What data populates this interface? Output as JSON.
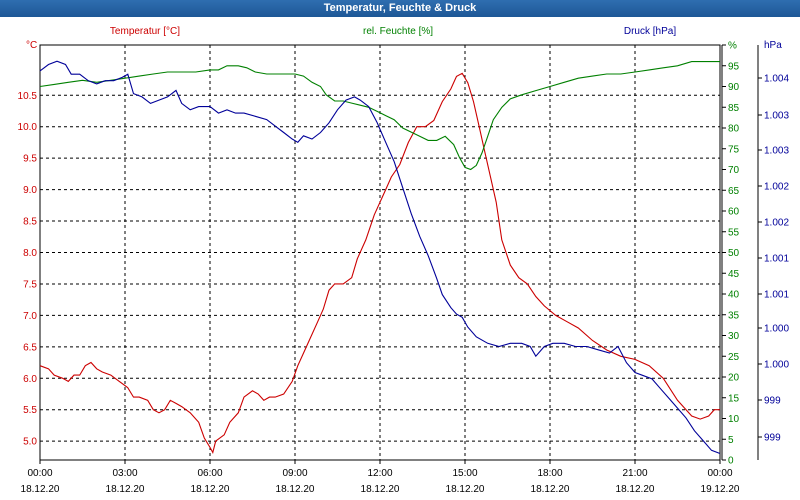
{
  "chart_data": {
    "type": "line",
    "title": "Temperatur, Feuchte & Druck",
    "grid": true,
    "legend_placement": "top",
    "x_ticks": [
      {
        "time": "00:00",
        "date": "18.12.20"
      },
      {
        "time": "03:00",
        "date": "18.12.20"
      },
      {
        "time": "06:00",
        "date": "18.12.20"
      },
      {
        "time": "09:00",
        "date": "18.12.20"
      },
      {
        "time": "12:00",
        "date": "18.12.20"
      },
      {
        "time": "15:00",
        "date": "18.12.20"
      },
      {
        "time": "18:00",
        "date": "18.12.20"
      },
      {
        "time": "21:00",
        "date": "18.12.20"
      },
      {
        "time": "00:00",
        "date": "19.12.20"
      }
    ],
    "x_range_hours": [
      0,
      24
    ],
    "axes": {
      "temperature": {
        "unit_label": "°C",
        "ylim": [
          4.7,
          11.3
        ],
        "ticks": [
          "10.5",
          "10.0",
          "9.5",
          "9.0",
          "8.5",
          "8.0",
          "7.5",
          "7.0",
          "6.5",
          "6.0",
          "5.5",
          "5.0"
        ],
        "color": "#cc0000"
      },
      "humidity": {
        "unit_label": "%",
        "ylim": [
          0,
          100
        ],
        "ticks": [
          "0",
          "5",
          "10",
          "15",
          "20",
          "25",
          "30",
          "35",
          "40",
          "45",
          "50",
          "55",
          "60",
          "65",
          "70",
          "75",
          "80",
          "85",
          "90",
          "95",
          "%"
        ],
        "color": "#008000"
      },
      "pressure": {
        "unit_label": "hPa",
        "ylim": [
          998.4,
          1004.8
        ],
        "ticks": [
          "1.004",
          "1.003",
          "1.003",
          "1.002",
          "1.002",
          "1.001",
          "1.001",
          "1.000",
          "1.000",
          "999",
          "999"
        ],
        "color": "#000099"
      }
    },
    "series": [
      {
        "name": "Temperatur [°C]",
        "axis": "temperature",
        "color": "#cc0000",
        "points": [
          [
            0,
            6.2
          ],
          [
            0.3,
            6.15
          ],
          [
            0.5,
            6.05
          ],
          [
            0.8,
            6.0
          ],
          [
            1.0,
            5.95
          ],
          [
            1.2,
            6.05
          ],
          [
            1.4,
            6.05
          ],
          [
            1.6,
            6.2
          ],
          [
            1.8,
            6.25
          ],
          [
            2.0,
            6.15
          ],
          [
            2.2,
            6.1
          ],
          [
            2.5,
            6.05
          ],
          [
            2.8,
            5.95
          ],
          [
            3.1,
            5.85
          ],
          [
            3.3,
            5.7
          ],
          [
            3.5,
            5.7
          ],
          [
            3.8,
            5.65
          ],
          [
            4.0,
            5.5
          ],
          [
            4.2,
            5.45
          ],
          [
            4.4,
            5.5
          ],
          [
            4.6,
            5.65
          ],
          [
            4.8,
            5.6
          ],
          [
            5.0,
            5.55
          ],
          [
            5.3,
            5.45
          ],
          [
            5.6,
            5.3
          ],
          [
            5.8,
            5.05
          ],
          [
            6.0,
            4.9
          ],
          [
            6.1,
            4.82
          ],
          [
            6.2,
            5.0
          ],
          [
            6.5,
            5.1
          ],
          [
            6.7,
            5.3
          ],
          [
            7.0,
            5.45
          ],
          [
            7.2,
            5.7
          ],
          [
            7.5,
            5.8
          ],
          [
            7.7,
            5.75
          ],
          [
            7.9,
            5.65
          ],
          [
            8.1,
            5.7
          ],
          [
            8.3,
            5.7
          ],
          [
            8.6,
            5.75
          ],
          [
            8.9,
            5.95
          ],
          [
            9.1,
            6.2
          ],
          [
            9.3,
            6.4
          ],
          [
            9.5,
            6.6
          ],
          [
            9.8,
            6.9
          ],
          [
            10.0,
            7.1
          ],
          [
            10.2,
            7.4
          ],
          [
            10.4,
            7.5
          ],
          [
            10.7,
            7.5
          ],
          [
            11.0,
            7.6
          ],
          [
            11.2,
            7.9
          ],
          [
            11.5,
            8.2
          ],
          [
            11.8,
            8.6
          ],
          [
            12.0,
            8.8
          ],
          [
            12.2,
            9.0
          ],
          [
            12.4,
            9.2
          ],
          [
            12.7,
            9.4
          ],
          [
            13.0,
            9.75
          ],
          [
            13.3,
            10.0
          ],
          [
            13.6,
            10.0
          ],
          [
            13.9,
            10.1
          ],
          [
            14.2,
            10.4
          ],
          [
            14.5,
            10.6
          ],
          [
            14.7,
            10.8
          ],
          [
            14.9,
            10.85
          ],
          [
            15.1,
            10.7
          ],
          [
            15.3,
            10.4
          ],
          [
            15.5,
            10.0
          ],
          [
            15.7,
            9.6
          ],
          [
            15.9,
            9.2
          ],
          [
            16.1,
            8.8
          ],
          [
            16.3,
            8.2
          ],
          [
            16.6,
            7.8
          ],
          [
            16.9,
            7.6
          ],
          [
            17.2,
            7.5
          ],
          [
            17.5,
            7.3
          ],
          [
            17.8,
            7.15
          ],
          [
            18.2,
            7.0
          ],
          [
            18.6,
            6.9
          ],
          [
            19.0,
            6.8
          ],
          [
            19.5,
            6.6
          ],
          [
            20.0,
            6.45
          ],
          [
            20.5,
            6.35
          ],
          [
            21.0,
            6.3
          ],
          [
            21.5,
            6.2
          ],
          [
            22.0,
            6.0
          ],
          [
            22.5,
            5.65
          ],
          [
            23.0,
            5.4
          ],
          [
            23.3,
            5.35
          ],
          [
            23.6,
            5.4
          ],
          [
            23.8,
            5.5
          ],
          [
            24.0,
            5.5
          ]
        ]
      },
      {
        "name": "rel. Feuchte [%]",
        "axis": "humidity",
        "color": "#008000",
        "points": [
          [
            0,
            90
          ],
          [
            0.5,
            90.5
          ],
          [
            1.0,
            91
          ],
          [
            1.5,
            91.5
          ],
          [
            2.0,
            91
          ],
          [
            2.5,
            91.5
          ],
          [
            3.0,
            92
          ],
          [
            3.5,
            92.5
          ],
          [
            4.0,
            93
          ],
          [
            4.5,
            93.5
          ],
          [
            5.0,
            93.5
          ],
          [
            5.5,
            93.5
          ],
          [
            6.0,
            94
          ],
          [
            6.3,
            94
          ],
          [
            6.6,
            95
          ],
          [
            7.0,
            95
          ],
          [
            7.3,
            94.5
          ],
          [
            7.6,
            93.5
          ],
          [
            8.0,
            93
          ],
          [
            8.5,
            93
          ],
          [
            9.0,
            93
          ],
          [
            9.3,
            92.5
          ],
          [
            9.6,
            91
          ],
          [
            9.9,
            90
          ],
          [
            10.1,
            88
          ],
          [
            10.4,
            86.5
          ],
          [
            10.7,
            86.5
          ],
          [
            11.0,
            86
          ],
          [
            11.3,
            85.5
          ],
          [
            11.6,
            85
          ],
          [
            11.9,
            84
          ],
          [
            12.2,
            83
          ],
          [
            12.5,
            82
          ],
          [
            12.8,
            80
          ],
          [
            13.1,
            79
          ],
          [
            13.4,
            78
          ],
          [
            13.7,
            77
          ],
          [
            14.0,
            77
          ],
          [
            14.3,
            78
          ],
          [
            14.6,
            76
          ],
          [
            14.8,
            73
          ],
          [
            15.0,
            70.5
          ],
          [
            15.2,
            70
          ],
          [
            15.4,
            71
          ],
          [
            15.6,
            74
          ],
          [
            15.8,
            78
          ],
          [
            16.0,
            82
          ],
          [
            16.3,
            85
          ],
          [
            16.6,
            87
          ],
          [
            17.0,
            88
          ],
          [
            17.5,
            89
          ],
          [
            18.0,
            90
          ],
          [
            18.5,
            91
          ],
          [
            19.0,
            92
          ],
          [
            19.5,
            92.5
          ],
          [
            20.0,
            93
          ],
          [
            20.5,
            93
          ],
          [
            21.0,
            93.5
          ],
          [
            21.5,
            94
          ],
          [
            22.0,
            94.5
          ],
          [
            22.5,
            95
          ],
          [
            23.0,
            96
          ],
          [
            23.5,
            96
          ],
          [
            24.0,
            96
          ]
        ]
      },
      {
        "name": "Druck [hPa]",
        "axis": "pressure",
        "color": "#000099",
        "points": [
          [
            0,
            1004.4
          ],
          [
            0.3,
            1004.5
          ],
          [
            0.6,
            1004.55
          ],
          [
            0.9,
            1004.5
          ],
          [
            1.1,
            1004.35
          ],
          [
            1.4,
            1004.35
          ],
          [
            1.7,
            1004.25
          ],
          [
            2.0,
            1004.2
          ],
          [
            2.3,
            1004.25
          ],
          [
            2.6,
            1004.25
          ],
          [
            2.9,
            1004.3
          ],
          [
            3.1,
            1004.35
          ],
          [
            3.3,
            1004.05
          ],
          [
            3.6,
            1004.0
          ],
          [
            3.9,
            1003.9
          ],
          [
            4.2,
            1003.95
          ],
          [
            4.5,
            1004.0
          ],
          [
            4.8,
            1004.1
          ],
          [
            5.0,
            1003.9
          ],
          [
            5.3,
            1003.8
          ],
          [
            5.6,
            1003.85
          ],
          [
            6.0,
            1003.85
          ],
          [
            6.3,
            1003.75
          ],
          [
            6.6,
            1003.8
          ],
          [
            6.9,
            1003.75
          ],
          [
            7.2,
            1003.75
          ],
          [
            7.6,
            1003.7
          ],
          [
            8.0,
            1003.65
          ],
          [
            8.3,
            1003.55
          ],
          [
            8.6,
            1003.45
          ],
          [
            8.9,
            1003.35
          ],
          [
            9.1,
            1003.3
          ],
          [
            9.3,
            1003.4
          ],
          [
            9.6,
            1003.35
          ],
          [
            9.9,
            1003.45
          ],
          [
            10.2,
            1003.6
          ],
          [
            10.5,
            1003.8
          ],
          [
            10.8,
            1003.95
          ],
          [
            11.1,
            1004.0
          ],
          [
            11.3,
            1003.95
          ],
          [
            11.6,
            1003.85
          ],
          [
            11.9,
            1003.6
          ],
          [
            12.2,
            1003.3
          ],
          [
            12.5,
            1003.0
          ],
          [
            12.8,
            1002.6
          ],
          [
            13.1,
            1002.2
          ],
          [
            13.4,
            1001.85
          ],
          [
            13.7,
            1001.55
          ],
          [
            14.0,
            1001.2
          ],
          [
            14.2,
            1000.95
          ],
          [
            14.5,
            1000.75
          ],
          [
            14.7,
            1000.65
          ],
          [
            14.9,
            1000.6
          ],
          [
            15.1,
            1000.45
          ],
          [
            15.4,
            1000.3
          ],
          [
            15.8,
            1000.2
          ],
          [
            16.2,
            1000.15
          ],
          [
            16.6,
            1000.2
          ],
          [
            17.0,
            1000.2
          ],
          [
            17.3,
            1000.15
          ],
          [
            17.5,
            1000.0
          ],
          [
            17.8,
            1000.15
          ],
          [
            18.1,
            1000.2
          ],
          [
            18.5,
            1000.2
          ],
          [
            18.9,
            1000.15
          ],
          [
            19.3,
            1000.15
          ],
          [
            19.7,
            1000.1
          ],
          [
            20.1,
            1000.05
          ],
          [
            20.4,
            1000.15
          ],
          [
            20.7,
            999.9
          ],
          [
            21.0,
            999.75
          ],
          [
            21.3,
            999.7
          ],
          [
            21.6,
            999.65
          ],
          [
            21.9,
            999.5
          ],
          [
            22.2,
            999.35
          ],
          [
            22.5,
            999.2
          ],
          [
            22.8,
            999.05
          ],
          [
            23.1,
            998.85
          ],
          [
            23.4,
            998.7
          ],
          [
            23.7,
            998.55
          ],
          [
            24.0,
            998.5
          ]
        ]
      }
    ]
  }
}
